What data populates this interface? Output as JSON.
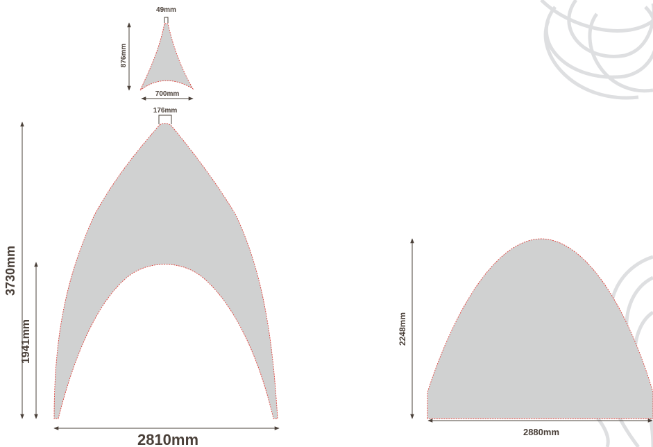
{
  "dimensions": {
    "top_piece_tip_width": "49mm",
    "top_piece_height": "876mm",
    "top_piece_base_width": "700mm",
    "main_piece_tip_width": "176mm",
    "main_piece_total_height": "3730mm",
    "main_piece_arch_height": "1941mm",
    "main_piece_base_width": "2810mm",
    "side_piece_height": "2248mm",
    "side_piece_base_width": "2880mm"
  },
  "colors": {
    "panel_fill": "#d0d1d1",
    "seam_dash": "#e0403a",
    "dimension_text": "#4a4039",
    "background_scribble": "#dedfe1"
  }
}
